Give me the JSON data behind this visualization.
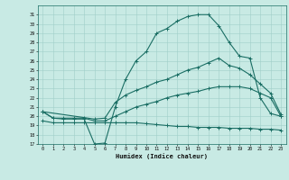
{
  "title": "",
  "xlabel": "Humidex (Indice chaleur)",
  "bg_color": "#c8eae4",
  "line_color": "#1a6e64",
  "grid_color": "#a0cfc8",
  "xlim": [
    -0.5,
    23.5
  ],
  "ylim": [
    17,
    32
  ],
  "yticks": [
    17,
    18,
    19,
    20,
    21,
    22,
    23,
    24,
    25,
    26,
    27,
    28,
    29,
    30,
    31
  ],
  "xticks": [
    0,
    1,
    2,
    3,
    4,
    5,
    6,
    7,
    8,
    9,
    10,
    11,
    12,
    13,
    14,
    15,
    16,
    17,
    18,
    19,
    20,
    21,
    22,
    23
  ],
  "line1_x": [
    0,
    1,
    2,
    3,
    4,
    5,
    6,
    7,
    8,
    9,
    10,
    11,
    12,
    13,
    14,
    15,
    16,
    17,
    18,
    19,
    20,
    21,
    22,
    23
  ],
  "line1_y": [
    20.5,
    19.8,
    19.7,
    19.7,
    19.7,
    17.0,
    17.1,
    21.0,
    24.0,
    26.0,
    27.0,
    29.0,
    29.5,
    30.3,
    30.8,
    31.0,
    31.0,
    29.8,
    28.0,
    26.5,
    26.3,
    22.0,
    20.3,
    20.0
  ],
  "line2_x": [
    0,
    5,
    6,
    7,
    8,
    9,
    10,
    11,
    12,
    13,
    14,
    15,
    16,
    17,
    18,
    19,
    20,
    21,
    22,
    23
  ],
  "line2_y": [
    20.5,
    19.7,
    19.8,
    21.5,
    22.3,
    22.8,
    23.2,
    23.7,
    24.0,
    24.5,
    25.0,
    25.3,
    25.8,
    26.3,
    25.5,
    25.2,
    24.5,
    23.5,
    22.5,
    20.2
  ],
  "line3_x": [
    0,
    1,
    2,
    3,
    4,
    5,
    6,
    7,
    8,
    9,
    10,
    11,
    12,
    13,
    14,
    15,
    16,
    17,
    18,
    19,
    20,
    21,
    22,
    23
  ],
  "line3_y": [
    20.5,
    19.8,
    19.8,
    19.8,
    19.8,
    19.5,
    19.5,
    20.0,
    20.5,
    21.0,
    21.3,
    21.6,
    22.0,
    22.3,
    22.5,
    22.7,
    23.0,
    23.2,
    23.2,
    23.2,
    23.0,
    22.5,
    22.0,
    20.0
  ],
  "line4_x": [
    0,
    1,
    2,
    3,
    4,
    5,
    6,
    7,
    8,
    9,
    10,
    11,
    12,
    13,
    14,
    15,
    16,
    17,
    18,
    19,
    20,
    21,
    22,
    23
  ],
  "line4_y": [
    19.5,
    19.3,
    19.3,
    19.3,
    19.3,
    19.3,
    19.3,
    19.3,
    19.3,
    19.3,
    19.2,
    19.1,
    19.0,
    18.9,
    18.9,
    18.8,
    18.8,
    18.8,
    18.7,
    18.7,
    18.7,
    18.6,
    18.6,
    18.5
  ]
}
